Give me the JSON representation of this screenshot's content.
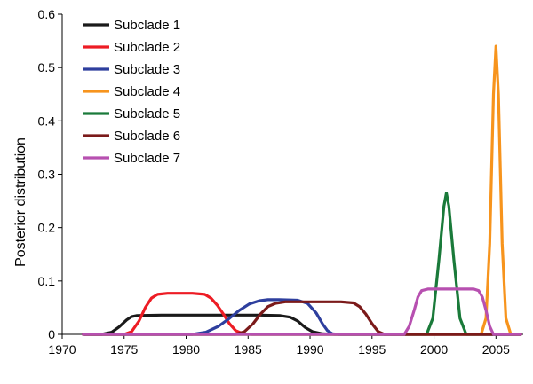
{
  "chart_data": {
    "type": "line",
    "title": "",
    "xlabel": "",
    "ylabel": "Posterior distribution",
    "xlim": [
      1970,
      2007
    ],
    "ylim": [
      0,
      0.6
    ],
    "xticks": [
      "1970",
      "1975",
      "1980",
      "1985",
      "1990",
      "1995",
      "2000",
      "2005"
    ],
    "yticks": [
      "0",
      "0.1",
      "0.2",
      "0.3",
      "0.4",
      "0.5",
      "0.6"
    ],
    "grid": false,
    "legend_position": "top-left",
    "series": [
      {
        "name": "Subclade 1",
        "color": "#1a1a1a",
        "x": [
          1971.7,
          1973.2,
          1974.0,
          1974.6,
          1975.2,
          1975.6,
          1976.0,
          1978.0,
          1982.0,
          1986.0,
          1987.6,
          1988.4,
          1989.0,
          1989.6,
          1990.2,
          1991.0,
          1992.0,
          1995.0,
          2007.0
        ],
        "y": [
          0,
          0,
          0.004,
          0.014,
          0.027,
          0.033,
          0.035,
          0.036,
          0.036,
          0.036,
          0.035,
          0.032,
          0.025,
          0.013,
          0.005,
          0.001,
          0,
          0,
          0
        ]
      },
      {
        "name": "Subclade 2",
        "color": "#ed1c24",
        "x": [
          1971.7,
          1975.0,
          1975.6,
          1976.2,
          1976.7,
          1977.2,
          1977.7,
          1978.5,
          1980.5,
          1981.5,
          1982.0,
          1982.5,
          1983.0,
          1983.5,
          1984.0,
          1984.6,
          1985.3,
          2007.0
        ],
        "y": [
          0,
          0,
          0.005,
          0.025,
          0.05,
          0.068,
          0.075,
          0.077,
          0.077,
          0.075,
          0.068,
          0.055,
          0.038,
          0.02,
          0.007,
          0.001,
          0,
          0
        ]
      },
      {
        "name": "Subclade 3",
        "color": "#2e3f9e",
        "x": [
          1971.7,
          1980.5,
          1981.6,
          1982.6,
          1983.5,
          1984.3,
          1985.1,
          1985.9,
          1986.6,
          1987.5,
          1989.0,
          1989.8,
          1990.5,
          1991.0,
          1991.4,
          1991.8,
          1992.3,
          2007.0
        ],
        "y": [
          0,
          0,
          0.004,
          0.015,
          0.03,
          0.045,
          0.057,
          0.063,
          0.065,
          0.065,
          0.064,
          0.058,
          0.04,
          0.02,
          0.007,
          0.001,
          0,
          0
        ]
      },
      {
        "name": "Subclade 4",
        "color": "#f7941d",
        "x": [
          1971.7,
          2003.8,
          2004.2,
          2004.5,
          2004.8,
          2005.0,
          2005.2,
          2005.5,
          2005.8,
          2006.2,
          2007.0
        ],
        "y": [
          0,
          0,
          0.03,
          0.17,
          0.45,
          0.54,
          0.45,
          0.17,
          0.03,
          0,
          0
        ]
      },
      {
        "name": "Subclade 5",
        "color": "#1a7a3a",
        "x": [
          1971.7,
          1999.4,
          1999.9,
          2000.4,
          2000.8,
          2001.0,
          2001.2,
          2001.6,
          2002.1,
          2002.6,
          2007.0
        ],
        "y": [
          0,
          0,
          0.03,
          0.14,
          0.24,
          0.265,
          0.24,
          0.14,
          0.03,
          0,
          0
        ]
      },
      {
        "name": "Subclade 6",
        "color": "#7b1a1a",
        "x": [
          1971.7,
          1984.0,
          1984.7,
          1985.4,
          1986.0,
          1986.6,
          1987.2,
          1988.0,
          1992.5,
          1993.5,
          1994.0,
          1994.5,
          1995.0,
          1995.5,
          1996.0,
          2007.0
        ],
        "y": [
          0,
          0,
          0.005,
          0.02,
          0.038,
          0.052,
          0.058,
          0.061,
          0.061,
          0.059,
          0.052,
          0.038,
          0.02,
          0.005,
          0,
          0
        ]
      },
      {
        "name": "Subclade 7",
        "color": "#b750b0",
        "x": [
          1971.7,
          1997.6,
          1998.0,
          1998.4,
          1998.7,
          1999.0,
          1999.5,
          2003.2,
          2003.6,
          2003.9,
          2004.2,
          2004.5,
          2004.8,
          2007.0
        ],
        "y": [
          0,
          0,
          0.015,
          0.045,
          0.07,
          0.082,
          0.085,
          0.085,
          0.082,
          0.07,
          0.045,
          0.015,
          0,
          0
        ]
      }
    ]
  }
}
